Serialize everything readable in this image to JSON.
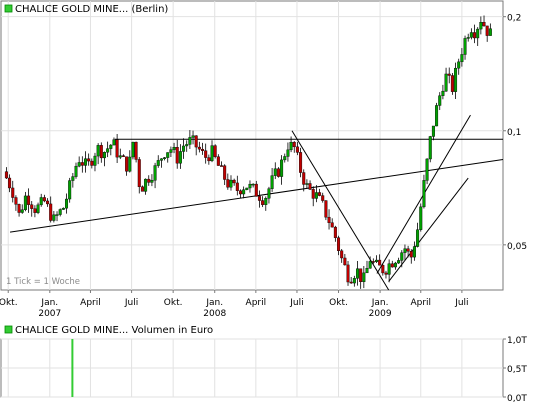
{
  "chart_data": [
    {
      "type": "candlestick",
      "title": "CHALICE GOLD MINE... (Berlin)",
      "title_color": "#00c000",
      "y_scale": "log",
      "ylim": [
        0.038,
        0.22
      ],
      "y_ticks": [
        {
          "value": 0.2,
          "label": "0,2"
        },
        {
          "value": 0.1,
          "label": "0,1"
        },
        {
          "value": 0.05,
          "label": "0,05"
        }
      ],
      "x_ticks": [
        {
          "date": "2006-10-01",
          "label": "Okt."
        },
        {
          "date": "2007-01-01",
          "label": "Jan."
        },
        {
          "date": "2007-04-01",
          "label": "April"
        },
        {
          "date": "2007-07-01",
          "label": "Juli"
        },
        {
          "date": "2007-10-01",
          "label": "Okt."
        },
        {
          "date": "2008-01-01",
          "label": "Jan."
        },
        {
          "date": "2008-04-01",
          "label": "April"
        },
        {
          "date": "2008-07-01",
          "label": "Juli"
        },
        {
          "date": "2008-10-01",
          "label": "Okt."
        },
        {
          "date": "2009-01-01",
          "label": "Jan."
        },
        {
          "date": "2009-04-01",
          "label": "April"
        },
        {
          "date": "2009-07-01",
          "label": "Juli"
        }
      ],
      "year_labels": [
        {
          "date": "2007-01-01",
          "label": "2007"
        },
        {
          "date": "2008-01-01",
          "label": "2008"
        },
        {
          "date": "2009-01-01",
          "label": "2009"
        }
      ],
      "xlim": [
        "2006-09-15",
        "2009-09-30"
      ],
      "grid": true,
      "annotation": "1 Tick = 1 Woche",
      "up_color": "#00a000",
      "down_color": "#c00000",
      "trendlines": [
        {
          "points": [
            [
              "2006-10-05",
              0.054
            ],
            [
              "2009-09-30",
              0.084
            ]
          ]
        },
        {
          "points": [
            [
              "2007-05-25",
              0.095
            ],
            [
              "2009-09-30",
              0.095
            ]
          ]
        },
        {
          "points": [
            [
              "2008-06-20",
              0.1
            ],
            [
              "2009-01-20",
              0.038
            ]
          ]
        },
        {
          "points": [
            [
              "2008-12-25",
              0.042
            ],
            [
              "2009-07-20",
              0.11
            ]
          ]
        },
        {
          "points": [
            [
              "2009-01-20",
              0.04
            ],
            [
              "2009-07-15",
              0.075
            ]
          ]
        }
      ],
      "anchors": [
        [
          "2006-09-20",
          0.078
        ],
        [
          "2006-10-10",
          0.07
        ],
        [
          "2006-10-25",
          0.06
        ],
        [
          "2006-11-10",
          0.068
        ],
        [
          "2006-12-01",
          0.062
        ],
        [
          "2006-12-20",
          0.065
        ],
        [
          "2007-01-10",
          0.058
        ],
        [
          "2007-02-01",
          0.063
        ],
        [
          "2007-02-20",
          0.075
        ],
        [
          "2007-03-05",
          0.085
        ],
        [
          "2007-03-25",
          0.08
        ],
        [
          "2007-04-15",
          0.09
        ],
        [
          "2007-05-01",
          0.088
        ],
        [
          "2007-05-20",
          0.093
        ],
        [
          "2007-06-05",
          0.085
        ],
        [
          "2007-06-25",
          0.08
        ],
        [
          "2007-07-05",
          0.095
        ],
        [
          "2007-07-20",
          0.07
        ],
        [
          "2007-08-05",
          0.075
        ],
        [
          "2007-08-25",
          0.08
        ],
        [
          "2007-09-10",
          0.088
        ],
        [
          "2007-09-25",
          0.09
        ],
        [
          "2007-10-10",
          0.085
        ],
        [
          "2007-10-25",
          0.092
        ],
        [
          "2007-11-10",
          0.094
        ],
        [
          "2007-11-25",
          0.09
        ],
        [
          "2007-12-10",
          0.085
        ],
        [
          "2007-12-25",
          0.088
        ],
        [
          "2008-01-15",
          0.078
        ],
        [
          "2008-02-01",
          0.072
        ],
        [
          "2008-02-20",
          0.07
        ],
        [
          "2008-03-10",
          0.072
        ],
        [
          "2008-04-01",
          0.069
        ],
        [
          "2008-04-20",
          0.066
        ],
        [
          "2008-05-10",
          0.075
        ],
        [
          "2008-05-25",
          0.08
        ],
        [
          "2008-06-10",
          0.092
        ],
        [
          "2008-06-25",
          0.09
        ],
        [
          "2008-07-10",
          0.078
        ],
        [
          "2008-07-25",
          0.07
        ],
        [
          "2008-08-10",
          0.068
        ],
        [
          "2008-08-25",
          0.064
        ],
        [
          "2008-09-10",
          0.058
        ],
        [
          "2008-09-25",
          0.052
        ],
        [
          "2008-10-10",
          0.045
        ],
        [
          "2008-10-25",
          0.041
        ],
        [
          "2008-11-10",
          0.043
        ],
        [
          "2008-11-25",
          0.04
        ],
        [
          "2008-12-10",
          0.046
        ],
        [
          "2008-12-20",
          0.044
        ],
        [
          "2009-01-10",
          0.043
        ],
        [
          "2009-01-25",
          0.045
        ],
        [
          "2009-02-10",
          0.047
        ],
        [
          "2009-02-25",
          0.049
        ],
        [
          "2009-03-10",
          0.046
        ],
        [
          "2009-03-25",
          0.055
        ],
        [
          "2009-04-10",
          0.075
        ],
        [
          "2009-04-25",
          0.1
        ],
        [
          "2009-05-10",
          0.12
        ],
        [
          "2009-05-25",
          0.14
        ],
        [
          "2009-06-10",
          0.13
        ],
        [
          "2009-06-25",
          0.155
        ],
        [
          "2009-07-05",
          0.17
        ],
        [
          "2009-07-20",
          0.19
        ],
        [
          "2009-08-01",
          0.182
        ],
        [
          "2009-08-10",
          0.2
        ],
        [
          "2009-08-25",
          0.185
        ],
        [
          "2009-09-05",
          0.178
        ]
      ]
    },
    {
      "type": "bar",
      "title": "CHALICE GOLD MINE... Volumen in Euro",
      "title_color": "#00c000",
      "ylim": [
        0,
        1000
      ],
      "y_ticks": [
        {
          "value": 1000,
          "label": "1,0T"
        },
        {
          "value": 500,
          "label": "0,5T"
        },
        {
          "value": 0,
          "label": "0,0T"
        }
      ],
      "grid": true,
      "bar_color": "#33cc33",
      "bars": [
        {
          "date": "2007-02-20",
          "value": 1000
        }
      ]
    }
  ]
}
